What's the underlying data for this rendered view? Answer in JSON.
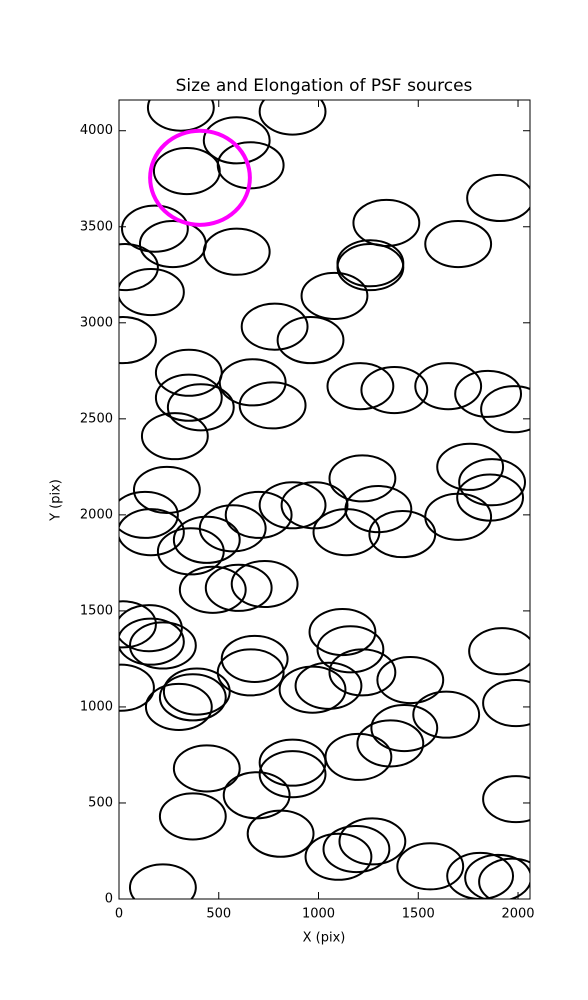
{
  "chart_data": {
    "type": "scatter",
    "title": "Size and Elongation of PSF sources",
    "x_label": "X (pix)",
    "y_label": "Y (pix)",
    "xlim": [
      0,
      2060
    ],
    "ylim": [
      0,
      4160
    ],
    "xticks": [
      0,
      500,
      1000,
      1500,
      2000
    ],
    "yticks": [
      0,
      500,
      1000,
      1500,
      2000,
      2500,
      3000,
      3500,
      4000
    ],
    "grid": false,
    "color": "#000000",
    "ellipse_width": 330,
    "ellipse_height": 240,
    "x": [
      310,
      870,
      590,
      660,
      340,
      1340,
      1910,
      180,
      270,
      590,
      1700,
      1260,
      1260,
      30,
      160,
      1080,
      780,
      960,
      20,
      350,
      670,
      1210,
      1380,
      1650,
      1850,
      1980,
      350,
      410,
      770,
      280,
      240,
      1220,
      1760,
      1870,
      1860,
      130,
      160,
      700,
      870,
      980,
      1300,
      1700,
      1140,
      1420,
      360,
      440,
      570,
      470,
      600,
      730,
      20,
      150,
      160,
      220,
      1120,
      1160,
      1220,
      1920,
      680,
      660,
      1050,
      970,
      1460,
      390,
      370,
      300,
      10,
      1640,
      1430,
      1360,
      1990,
      440,
      870,
      870,
      690,
      1200,
      370,
      810,
      1100,
      1190,
      1270,
      1560,
      1810,
      1900,
      1970,
      220,
      1990
    ],
    "y": [
      4120,
      4100,
      3950,
      3820,
      3790,
      3520,
      3650,
      3490,
      3410,
      3370,
      3410,
      3310,
      3290,
      3290,
      3160,
      3140,
      2980,
      2910,
      2910,
      2740,
      2690,
      2670,
      2650,
      2670,
      2630,
      2550,
      2610,
      2560,
      2570,
      2410,
      2130,
      2190,
      2250,
      2170,
      2090,
      2000,
      1910,
      2000,
      2050,
      2050,
      2030,
      1990,
      1910,
      1900,
      1810,
      1870,
      1930,
      1610,
      1620,
      1640,
      1430,
      1410,
      1340,
      1320,
      1390,
      1300,
      1180,
      1290,
      1250,
      1180,
      1110,
      1090,
      1140,
      1080,
      1050,
      1000,
      1100,
      960,
      890,
      810,
      1020,
      680,
      710,
      650,
      540,
      740,
      430,
      340,
      220,
      260,
      300,
      170,
      120,
      110,
      90,
      60,
      520
    ],
    "highlight": {
      "x": 406,
      "y": 3755,
      "width": 500,
      "height": 490,
      "color": "#ff00ff"
    }
  }
}
